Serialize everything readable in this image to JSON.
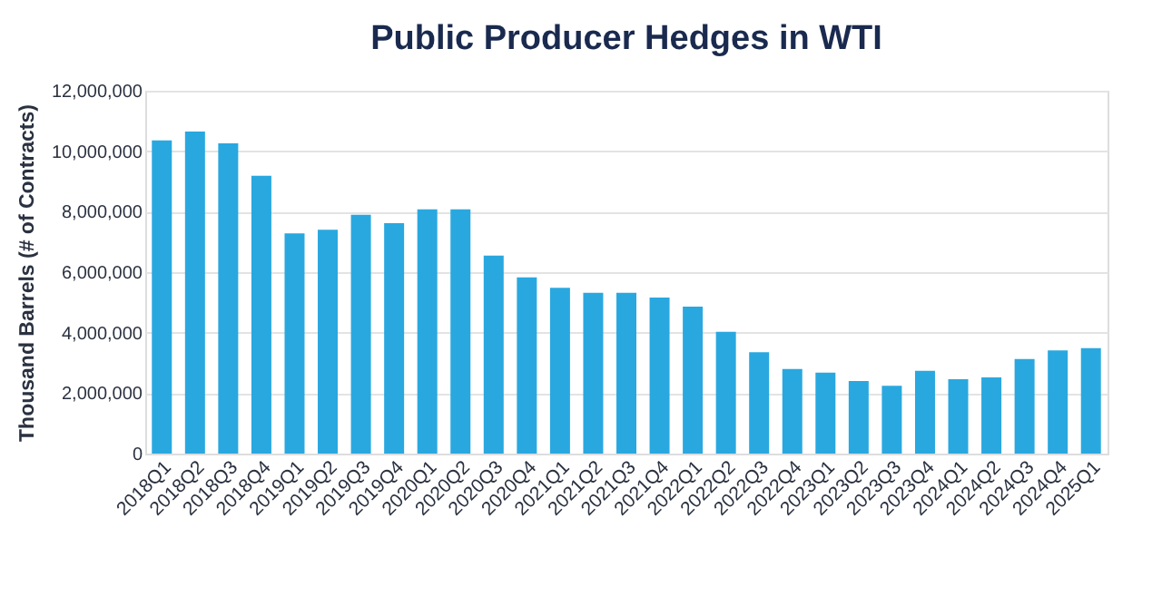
{
  "chart_data": {
    "type": "bar",
    "title": "Public Producer Hedges in WTI",
    "ylabel": "Thousand Barrels  (# of Contracts)",
    "categories": [
      "2018Q1",
      "2018Q2",
      "2018Q3",
      "2018Q4",
      "2019Q1",
      "2019Q2",
      "2019Q3",
      "2019Q4",
      "2020Q1",
      "2020Q2",
      "2020Q3",
      "2020Q4",
      "2021Q1",
      "2021Q2",
      "2021Q3",
      "2021Q4",
      "2022Q1",
      "2022Q2",
      "2022Q3",
      "2022Q4",
      "2023Q1",
      "2023Q2",
      "2023Q3",
      "2023Q4",
      "2024Q1",
      "2024Q2",
      "2024Q3",
      "2024Q4",
      "2025Q1"
    ],
    "values": [
      10360000,
      10650000,
      10260000,
      9190000,
      7280000,
      7400000,
      7900000,
      7620000,
      8080000,
      8080000,
      6550000,
      5830000,
      5480000,
      5320000,
      5320000,
      5160000,
      4860000,
      4030000,
      3350000,
      2800000,
      2680000,
      2400000,
      2240000,
      2740000,
      2460000,
      2520000,
      3130000,
      3410000,
      3490000
    ],
    "color": "#29a8e0",
    "ylim": [
      0,
      12000000
    ],
    "yticks": [
      0,
      {
        "value": 2000000,
        "label": "2,000,000"
      },
      {
        "value": 4000000,
        "label": "4,000,000"
      },
      {
        "value": 6000000,
        "label": "6,000,000"
      },
      {
        "value": 8000000,
        "label": "8,000,000"
      },
      {
        "value": 10000000,
        "label": "10,000,000"
      },
      {
        "value": 12000000,
        "label": "12,000,000"
      }
    ],
    "grid": "y"
  }
}
